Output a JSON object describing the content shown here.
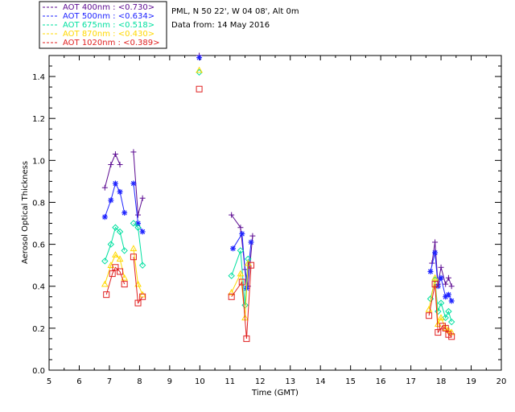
{
  "info": {
    "site": "PML, N 50 22', W 04 08', Alt 0m",
    "date_line": "Data from: 14 May 2016"
  },
  "chart_data": {
    "type": "scatter",
    "title": "",
    "xlabel": "Time (GMT)",
    "ylabel": "Aerosol Optical Thickness",
    "xlim": [
      5,
      20
    ],
    "ylim": [
      0,
      1.5
    ],
    "x_ticks": [
      "5",
      "6",
      "7",
      "8",
      "9",
      "10",
      "11",
      "12",
      "13",
      "14",
      "15",
      "16",
      "17",
      "18",
      "19",
      "20"
    ],
    "y_ticks": [
      "0.0",
      "0.2",
      "0.4",
      "0.6",
      "0.8",
      "1.0",
      "1.2",
      "1.4"
    ],
    "legend_position": "top-left",
    "series": [
      {
        "name": "AOT 400nm : <0.730>",
        "color": "#5b0a91",
        "marker": "plus",
        "segments": [
          [
            [
              6.85,
              0.87
            ],
            [
              7.05,
              0.98
            ],
            [
              7.2,
              1.03
            ],
            [
              7.35,
              0.98
            ]
          ],
          [
            [
              7.8,
              1.04
            ],
            [
              7.95,
              0.74
            ],
            [
              8.1,
              0.82
            ]
          ],
          [
            [
              9.98,
              1.5
            ]
          ],
          [
            [
              11.05,
              0.74
            ],
            [
              11.35,
              0.68
            ],
            [
              11.5,
              0.48
            ],
            [
              11.6,
              0.4
            ],
            [
              11.75,
              0.64
            ]
          ],
          [
            [
              17.7,
              0.51
            ],
            [
              17.8,
              0.61
            ],
            [
              17.9,
              0.41
            ],
            [
              18.0,
              0.49
            ],
            [
              18.15,
              0.41
            ],
            [
              18.25,
              0.44
            ],
            [
              18.35,
              0.4
            ]
          ]
        ]
      },
      {
        "name": "AOT 500nm : <0.634>",
        "color": "#1f24ff",
        "marker": "star",
        "segments": [
          [
            [
              6.85,
              0.73
            ],
            [
              7.05,
              0.81
            ],
            [
              7.2,
              0.89
            ],
            [
              7.35,
              0.85
            ],
            [
              7.5,
              0.75
            ]
          ],
          [
            [
              7.8,
              0.89
            ],
            [
              7.95,
              0.7
            ],
            [
              8.1,
              0.66
            ]
          ],
          [
            [
              9.98,
              1.49
            ]
          ],
          [
            [
              11.1,
              0.58
            ],
            [
              11.4,
              0.65
            ],
            [
              11.55,
              0.39
            ],
            [
              11.7,
              0.61
            ]
          ],
          [
            [
              17.65,
              0.47
            ],
            [
              17.8,
              0.56
            ],
            [
              17.9,
              0.4
            ],
            [
              18.0,
              0.44
            ],
            [
              18.15,
              0.35
            ],
            [
              18.25,
              0.36
            ],
            [
              18.35,
              0.33
            ]
          ]
        ]
      },
      {
        "name": "AOT 675nm : <0.518>",
        "color": "#00e0a0",
        "marker": "diamond",
        "segments": [
          [
            [
              6.85,
              0.52
            ],
            [
              7.05,
              0.6
            ],
            [
              7.2,
              0.68
            ],
            [
              7.35,
              0.66
            ],
            [
              7.5,
              0.57
            ]
          ],
          [
            [
              7.8,
              0.7
            ],
            [
              7.95,
              0.68
            ],
            [
              8.1,
              0.5
            ]
          ],
          [
            [
              9.98,
              1.42
            ]
          ],
          [
            [
              11.05,
              0.45
            ],
            [
              11.35,
              0.57
            ],
            [
              11.5,
              0.31
            ],
            [
              11.6,
              0.53
            ]
          ],
          [
            [
              17.65,
              0.34
            ],
            [
              17.8,
              0.43
            ],
            [
              17.9,
              0.28
            ],
            [
              18.0,
              0.32
            ],
            [
              18.15,
              0.25
            ],
            [
              18.25,
              0.28
            ],
            [
              18.35,
              0.23
            ]
          ]
        ]
      },
      {
        "name": "AOT 870nm : <0.430>",
        "color": "#ffd800",
        "marker": "triangle",
        "segments": [
          [
            [
              6.85,
              0.41
            ],
            [
              7.05,
              0.5
            ],
            [
              7.2,
              0.55
            ],
            [
              7.35,
              0.53
            ],
            [
              7.5,
              0.44
            ]
          ],
          [
            [
              7.8,
              0.58
            ],
            [
              7.95,
              0.41
            ],
            [
              8.1,
              0.36
            ]
          ],
          [
            [
              9.98,
              1.43
            ]
          ],
          [
            [
              11.05,
              0.37
            ],
            [
              11.35,
              0.46
            ],
            [
              11.5,
              0.25
            ],
            [
              11.6,
              0.51
            ]
          ],
          [
            [
              17.6,
              0.29
            ],
            [
              17.8,
              0.44
            ],
            [
              17.9,
              0.22
            ],
            [
              18.0,
              0.25
            ],
            [
              18.15,
              0.2
            ],
            [
              18.25,
              0.19
            ],
            [
              18.35,
              0.18
            ]
          ]
        ]
      },
      {
        "name": "AOT 1020nm : <0.389>",
        "color": "#e02020",
        "marker": "square",
        "segments": [
          [
            [
              6.9,
              0.36
            ],
            [
              7.1,
              0.46
            ],
            [
              7.2,
              0.49
            ],
            [
              7.35,
              0.47
            ],
            [
              7.5,
              0.41
            ]
          ],
          [
            [
              7.8,
              0.54
            ],
            [
              7.95,
              0.32
            ],
            [
              8.1,
              0.35
            ]
          ],
          [
            [
              9.98,
              1.34
            ]
          ],
          [
            [
              11.05,
              0.35
            ],
            [
              11.4,
              0.42
            ],
            [
              11.55,
              0.15
            ],
            [
              11.7,
              0.5
            ]
          ],
          [
            [
              17.6,
              0.26
            ],
            [
              17.8,
              0.41
            ],
            [
              17.9,
              0.18
            ],
            [
              18.05,
              0.21
            ],
            [
              18.15,
              0.2
            ],
            [
              18.25,
              0.17
            ],
            [
              18.35,
              0.16
            ]
          ]
        ]
      }
    ]
  }
}
